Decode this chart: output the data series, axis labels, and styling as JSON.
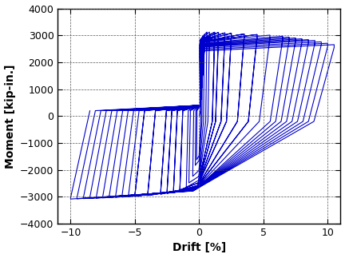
{
  "xlabel": "Drift [%]",
  "ylabel": "Moment [kip-in.]",
  "xlim": [
    -11,
    11
  ],
  "ylim": [
    -4000,
    4000
  ],
  "xticks": [
    -10,
    -5,
    0,
    5,
    10
  ],
  "yticks": [
    -4000,
    -3000,
    -2000,
    -1000,
    0,
    1000,
    2000,
    3000,
    4000
  ],
  "line_color": "#0000CC",
  "line_width": 0.8,
  "bg_color": "#ffffff",
  "fig_width": 4.32,
  "fig_height": 3.23,
  "dpi": 100
}
